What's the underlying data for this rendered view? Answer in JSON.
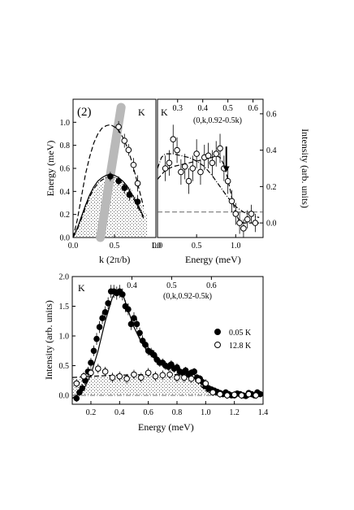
{
  "chart_data": [
    {
      "type": "scatter",
      "panel_label": "(2)",
      "corner_label": "K",
      "xlabel": "k (2π/b)",
      "ylabel": "Energy (meV)",
      "xlim": [
        0.0,
        1.0
      ],
      "ylim": [
        0.0,
        1.2
      ],
      "xticks": [
        0.0,
        0.5,
        1.0
      ],
      "xtick_labels": [
        "0.0",
        "0.5",
        "1.0"
      ],
      "yticks": [
        0.0,
        0.2,
        0.4,
        0.6,
        0.8,
        1.0
      ],
      "ytick_labels": [
        "0.0",
        "0.2",
        "0.4",
        "0.6",
        "0.8",
        "1.0"
      ],
      "series": [
        {
          "marker": "open-circle",
          "x": [
            0.55,
            0.62,
            0.67,
            0.73,
            0.78
          ],
          "y": [
            0.96,
            0.84,
            0.76,
            0.63,
            0.47
          ],
          "err": [
            0.05,
            0.06,
            0.05,
            0.06,
            0.07
          ]
        },
        {
          "marker": "filled-circle",
          "x": [
            0.45,
            0.55,
            0.62,
            0.68,
            0.78
          ],
          "y": [
            0.53,
            0.49,
            0.43,
            0.37,
            0.31
          ],
          "err": [
            0.04,
            0.04,
            0.05,
            0.05,
            0.06
          ]
        }
      ],
      "curves": [
        {
          "style": "dashed",
          "x": [
            0.0,
            0.05,
            0.1,
            0.15,
            0.2,
            0.25,
            0.3,
            0.35,
            0.4,
            0.45,
            0.5,
            0.55,
            0.6,
            0.65,
            0.7,
            0.75,
            0.8,
            0.85
          ],
          "y": [
            0.0,
            0.15,
            0.35,
            0.55,
            0.7,
            0.82,
            0.9,
            0.95,
            0.97,
            0.98,
            0.96,
            0.93,
            0.87,
            0.79,
            0.68,
            0.55,
            0.41,
            0.27
          ]
        },
        {
          "style": "solid",
          "x": [
            0.0,
            0.05,
            0.1,
            0.15,
            0.2,
            0.25,
            0.3,
            0.35,
            0.4,
            0.45,
            0.5,
            0.55,
            0.6,
            0.65,
            0.7,
            0.75,
            0.8,
            0.85
          ],
          "y": [
            0.0,
            0.08,
            0.18,
            0.28,
            0.37,
            0.44,
            0.49,
            0.52,
            0.54,
            0.55,
            0.54,
            0.52,
            0.49,
            0.45,
            0.39,
            0.33,
            0.26,
            0.18
          ]
        },
        {
          "style": "dash-dot",
          "x": [
            0.0,
            0.05,
            0.1,
            0.15,
            0.2,
            0.25,
            0.3,
            0.35,
            0.4,
            0.45,
            0.5,
            0.55,
            0.6,
            0.65,
            0.7,
            0.75,
            0.8,
            0.85
          ],
          "y": [
            0.0,
            0.07,
            0.16,
            0.26,
            0.35,
            0.42,
            0.47,
            0.5,
            0.52,
            0.53,
            0.52,
            0.5,
            0.47,
            0.43,
            0.37,
            0.31,
            0.24,
            0.17
          ]
        }
      ],
      "band": {
        "color": "#b9b9b9",
        "x": [
          0.33,
          0.58
        ],
        "y": [
          0.0,
          1.2
        ]
      },
      "shading": {
        "x": [
          0.0,
          0.1,
          0.2,
          0.3,
          0.4,
          0.5,
          0.6,
          0.7,
          0.8,
          0.9
        ],
        "y": [
          0.0,
          0.16,
          0.33,
          0.45,
          0.51,
          0.53,
          0.5,
          0.42,
          0.3,
          0.2
        ]
      }
    },
    {
      "type": "scatter",
      "corner_label": "K",
      "top_annotation": "(0,k,0.92-0.5k)",
      "xlabel": "Energy (meV)",
      "ylabel": "Intensity (arb. units)",
      "xlim": [
        0.0,
        1.35
      ],
      "ylim": [
        -0.08,
        0.68
      ],
      "xticks": [
        0.0,
        0.5,
        1.0
      ],
      "xtick_labels": [
        "0.0",
        "0.5",
        "1.0"
      ],
      "yticks": [
        0.0,
        0.2,
        0.4,
        0.6
      ],
      "ytick_labels": [
        "0.0",
        "0.2",
        "0.4",
        "0.6"
      ],
      "top_ticks": [
        0.3,
        0.4,
        0.5,
        0.6
      ],
      "top_tick_labels": [
        "0.3",
        "0.4",
        "0.5",
        "0.6"
      ],
      "series": [
        {
          "marker": "open-circle",
          "x": [
            0.1,
            0.15,
            0.2,
            0.25,
            0.3,
            0.35,
            0.4,
            0.45,
            0.5,
            0.55,
            0.6,
            0.65,
            0.7,
            0.75,
            0.8,
            0.85,
            0.9,
            0.95,
            1.0,
            1.05,
            1.1,
            1.15,
            1.2,
            1.25
          ],
          "y": [
            0.3,
            0.33,
            0.46,
            0.4,
            0.28,
            0.31,
            0.23,
            0.3,
            0.38,
            0.28,
            0.36,
            0.37,
            0.33,
            0.38,
            0.41,
            0.3,
            0.23,
            0.12,
            0.05,
            0.0,
            -0.03,
            0.02,
            0.05,
            0.0
          ],
          "err": [
            0.07,
            0.07,
            0.08,
            0.07,
            0.07,
            0.07,
            0.07,
            0.07,
            0.08,
            0.07,
            0.07,
            0.07,
            0.07,
            0.07,
            0.08,
            0.07,
            0.07,
            0.06,
            0.06,
            0.06,
            0.05,
            0.05,
            0.05,
            0.05
          ]
        }
      ],
      "curves": [
        {
          "style": "dashed",
          "x": [
            0.0,
            0.1,
            0.2,
            0.3,
            0.4,
            0.5,
            0.6,
            0.7,
            0.75,
            0.8,
            0.85,
            0.9,
            0.95,
            1.0,
            1.05,
            1.1,
            1.2,
            1.3
          ],
          "y": [
            0.24,
            0.29,
            0.31,
            0.32,
            0.33,
            0.34,
            0.35,
            0.36,
            0.37,
            0.36,
            0.32,
            0.24,
            0.14,
            0.05,
            0.01,
            0.0,
            0.0,
            0.0
          ]
        },
        {
          "style": "dash-dot",
          "x": [
            0.0,
            0.05,
            0.1,
            0.2,
            0.3,
            0.4,
            0.5,
            0.6,
            0.7,
            0.8,
            0.9,
            1.0,
            1.1,
            1.2,
            1.3
          ],
          "y": [
            0.3,
            0.36,
            0.38,
            0.38,
            0.37,
            0.36,
            0.34,
            0.31,
            0.26,
            0.2,
            0.14,
            0.09,
            0.06,
            0.04,
            0.03
          ]
        }
      ],
      "baseline": {
        "style": "dashed",
        "y": 0.06
      },
      "arrow": {
        "x": 0.88,
        "y_from": 0.42,
        "y_to": 0.28
      }
    },
    {
      "type": "scatter",
      "corner_label": "K",
      "top_annotation": "(0,k,0.92-0.5k)",
      "xlabel": "Energy (meV)",
      "ylabel": "Intensity (arb. units)",
      "xlim": [
        0.07,
        1.4
      ],
      "ylim": [
        -0.15,
        2.0
      ],
      "xticks": [
        0.2,
        0.4,
        0.6,
        0.8,
        1.0,
        1.2,
        1.4
      ],
      "xtick_labels": [
        "0.2",
        "0.4",
        "0.6",
        "0.8",
        "1.0",
        "1.2",
        "1.4"
      ],
      "yticks": [
        0.0,
        0.5,
        1.0,
        1.5,
        2.0
      ],
      "ytick_labels": [
        "0.0",
        "0.5",
        "1.0",
        "1.5",
        "2.0"
      ],
      "top_ticks": [
        0.4,
        0.5,
        0.6
      ],
      "top_tick_labels": [
        "0.4",
        "0.5",
        "0.6"
      ],
      "series": [
        {
          "name": "0.05 K",
          "marker": "filled-circle",
          "x": [
            0.1,
            0.12,
            0.14,
            0.16,
            0.18,
            0.2,
            0.22,
            0.24,
            0.26,
            0.28,
            0.3,
            0.32,
            0.34,
            0.36,
            0.38,
            0.4,
            0.42,
            0.44,
            0.46,
            0.48,
            0.5,
            0.52,
            0.54,
            0.56,
            0.58,
            0.6,
            0.62,
            0.64,
            0.66,
            0.68,
            0.7,
            0.72,
            0.74,
            0.76,
            0.78,
            0.8,
            0.82,
            0.84,
            0.86,
            0.88,
            0.9,
            0.92,
            0.94,
            0.96,
            0.98,
            1.0,
            1.02,
            1.04,
            1.06,
            1.08,
            1.1,
            1.12,
            1.14,
            1.16,
            1.18,
            1.2,
            1.22,
            1.24,
            1.26,
            1.28,
            1.3,
            1.32,
            1.34,
            1.36,
            1.38
          ],
          "y": [
            -0.05,
            0.05,
            0.12,
            0.25,
            0.4,
            0.55,
            0.75,
            0.95,
            1.15,
            1.3,
            1.4,
            1.55,
            1.75,
            1.75,
            1.72,
            1.75,
            1.7,
            1.5,
            1.45,
            1.2,
            1.3,
            1.2,
            1.05,
            0.92,
            0.85,
            0.75,
            0.72,
            0.68,
            0.6,
            0.55,
            0.55,
            0.5,
            0.48,
            0.52,
            0.45,
            0.47,
            0.4,
            0.38,
            0.42,
            0.35,
            0.38,
            0.4,
            0.3,
            0.28,
            0.22,
            0.15,
            0.12,
            0.1,
            0.08,
            0.06,
            0.04,
            0.02,
            0.05,
            0.02,
            0.0,
            0.0,
            0.03,
            0.02,
            0.0,
            -0.01,
            0.04,
            0.02,
            0.0,
            0.05,
            0.02
          ],
          "err": [
            0.06,
            0.06,
            0.07,
            0.07,
            0.08,
            0.08,
            0.09,
            0.1,
            0.1,
            0.1,
            0.1,
            0.1,
            0.11,
            0.11,
            0.11,
            0.11,
            0.1,
            0.1,
            0.1,
            0.1,
            0.1,
            0.09,
            0.09,
            0.09,
            0.08,
            0.08,
            0.08,
            0.08,
            0.08,
            0.07,
            0.07,
            0.07,
            0.07,
            0.07,
            0.07,
            0.07,
            0.07,
            0.06,
            0.06,
            0.06,
            0.06,
            0.06,
            0.06,
            0.06,
            0.06,
            0.05,
            0.05,
            0.05,
            0.05,
            0.05,
            0.05,
            0.05,
            0.05,
            0.05,
            0.05,
            0.05,
            0.05,
            0.05,
            0.05,
            0.05,
            0.05,
            0.05,
            0.05,
            0.05,
            0.05
          ]
        },
        {
          "name": "12.8 K",
          "marker": "open-circle",
          "x": [
            0.1,
            0.15,
            0.2,
            0.25,
            0.3,
            0.35,
            0.4,
            0.45,
            0.5,
            0.55,
            0.6,
            0.65,
            0.7,
            0.75,
            0.8,
            0.85,
            0.9,
            0.95,
            1.0,
            1.05,
            1.1,
            1.15,
            1.2,
            1.25,
            1.3,
            1.35
          ],
          "y": [
            0.2,
            0.32,
            0.38,
            0.45,
            0.4,
            0.3,
            0.32,
            0.28,
            0.35,
            0.3,
            0.38,
            0.32,
            0.34,
            0.35,
            0.3,
            0.3,
            0.28,
            0.25,
            0.2,
            0.05,
            0.02,
            0.0,
            0.01,
            0.0,
            0.02,
            0.0
          ],
          "err": [
            0.07,
            0.07,
            0.08,
            0.08,
            0.08,
            0.08,
            0.08,
            0.08,
            0.08,
            0.08,
            0.08,
            0.08,
            0.08,
            0.08,
            0.08,
            0.08,
            0.07,
            0.07,
            0.07,
            0.06,
            0.06,
            0.06,
            0.06,
            0.06,
            0.06,
            0.06
          ]
        }
      ],
      "curves": [
        {
          "style": "solid",
          "x": [
            0.07,
            0.1,
            0.15,
            0.2,
            0.25,
            0.3,
            0.35,
            0.38,
            0.4,
            0.42,
            0.45,
            0.5,
            0.55,
            0.6,
            0.7,
            0.8,
            0.9,
            0.95,
            1.0,
            1.05,
            1.1,
            1.2,
            1.3,
            1.4
          ],
          "y": [
            -0.05,
            0.0,
            0.1,
            0.35,
            0.75,
            1.25,
            1.65,
            1.77,
            1.78,
            1.72,
            1.5,
            1.15,
            0.9,
            0.72,
            0.55,
            0.45,
            0.38,
            0.3,
            0.15,
            0.05,
            0.01,
            0.0,
            0.0,
            0.0
          ]
        },
        {
          "style": "dashed",
          "x": [
            0.07,
            0.2,
            0.4,
            0.6,
            0.8,
            0.9,
            0.95,
            1.0,
            1.05,
            1.1,
            1.2,
            1.4
          ],
          "y": [
            0.3,
            0.32,
            0.34,
            0.35,
            0.35,
            0.3,
            0.2,
            0.08,
            0.02,
            0.0,
            0.0,
            0.0
          ]
        }
      ],
      "baseline": {
        "style": "dash-dot",
        "y": 0.0
      },
      "shading": {
        "x": [
          0.07,
          0.2,
          0.4,
          0.6,
          0.8,
          0.9,
          0.95,
          1.0,
          1.05,
          1.1
        ],
        "y": [
          0.28,
          0.3,
          0.33,
          0.35,
          0.34,
          0.3,
          0.2,
          0.08,
          0.02,
          0.0
        ]
      },
      "legend": {
        "position": "right"
      }
    }
  ]
}
